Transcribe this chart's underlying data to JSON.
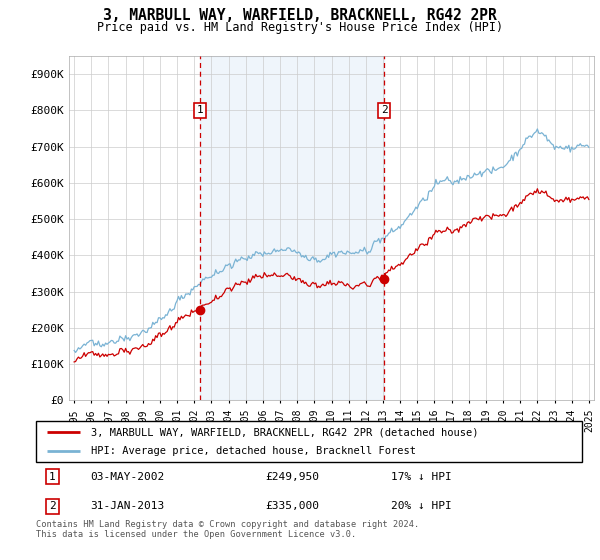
{
  "title": "3, MARBULL WAY, WARFIELD, BRACKNELL, RG42 2PR",
  "subtitle": "Price paid vs. HM Land Registry's House Price Index (HPI)",
  "legend_line1": "3, MARBULL WAY, WARFIELD, BRACKNELL, RG42 2PR (detached house)",
  "legend_line2": "HPI: Average price, detached house, Bracknell Forest",
  "annotation1_date": "03-MAY-2002",
  "annotation1_price": "£249,950",
  "annotation1_hpi": "17% ↓ HPI",
  "annotation2_date": "31-JAN-2013",
  "annotation2_price": "£335,000",
  "annotation2_hpi": "20% ↓ HPI",
  "footnote": "Contains HM Land Registry data © Crown copyright and database right 2024.\nThis data is licensed under the Open Government Licence v3.0.",
  "hpi_color": "#7ab3d4",
  "price_color": "#cc0000",
  "vline_color": "#cc0000",
  "shade_color": "#ddeeff",
  "ylim": [
    0,
    950000
  ],
  "yticks": [
    0,
    100000,
    200000,
    300000,
    400000,
    500000,
    600000,
    700000,
    800000,
    900000
  ],
  "ytick_labels": [
    "£0",
    "£100K",
    "£200K",
    "£300K",
    "£400K",
    "£500K",
    "£600K",
    "£700K",
    "£800K",
    "£900K"
  ],
  "sale1_year": 2002.34,
  "sale1_price": 249950,
  "sale2_year": 2013.08,
  "sale2_price": 335000,
  "xlim_left": 1994.7,
  "xlim_right": 2025.3
}
